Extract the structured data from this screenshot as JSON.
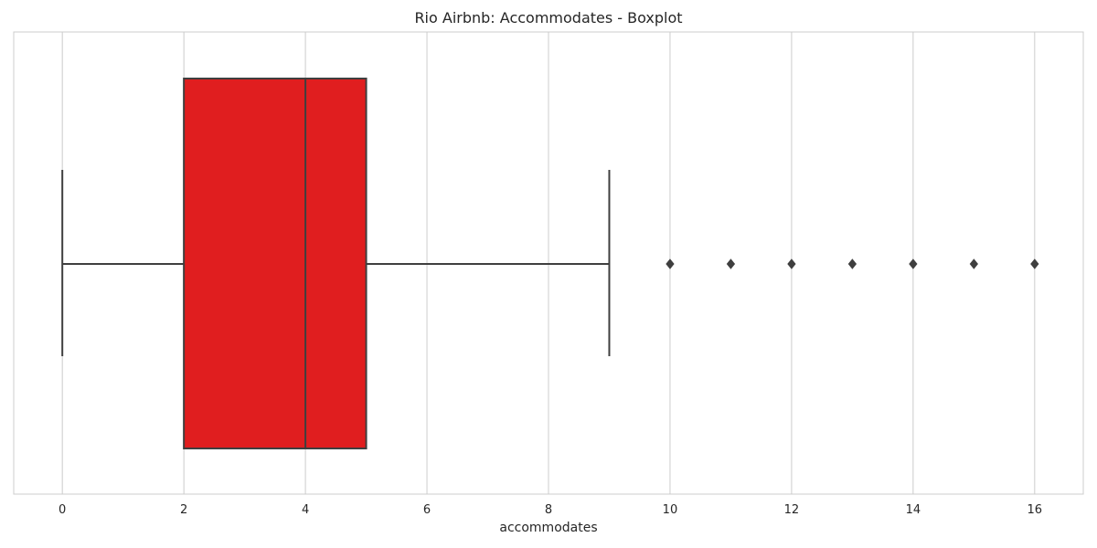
{
  "chart_data": {
    "type": "boxplot",
    "title": "Rio Airbnb: Accommodates - Boxplot",
    "xlabel": "accommodates",
    "ylabel": "",
    "xlim": [
      -0.8,
      16.8
    ],
    "xticks": [
      0,
      2,
      4,
      6,
      8,
      10,
      12,
      14,
      16
    ],
    "grid": true,
    "orientation": "horizontal",
    "box": {
      "whisker_low": 0,
      "q1": 2,
      "median": 4,
      "q3": 5,
      "whisker_high": 9
    },
    "outliers": [
      10,
      11,
      12,
      13,
      14,
      15,
      16
    ],
    "colors": {
      "box_fill": "#e01e1f",
      "line": "#3f3f3f",
      "grid": "#cccccc",
      "spine": "#cccccc"
    }
  }
}
